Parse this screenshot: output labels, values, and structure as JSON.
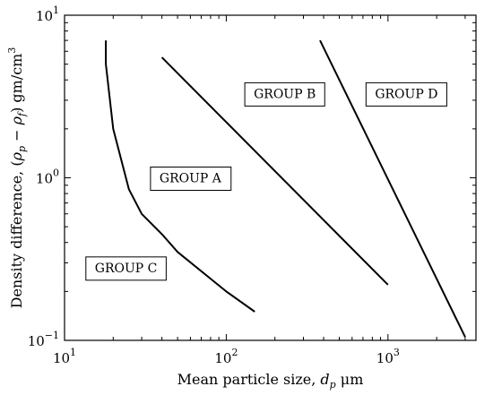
{
  "chart_data": {
    "type": "line",
    "xscale": "log",
    "yscale": "log",
    "xlim": [
      10,
      3500
    ],
    "ylim": [
      0.1,
      10
    ],
    "xlabel": "Mean particle size, d_p μm",
    "xlabel_parts": {
      "pre": "Mean particle size, ",
      "var": "d",
      "sub": "p",
      "unit": " μm"
    },
    "ylabel": "Density difference, (ρ_p − ρ_f) gm/cm³",
    "ylabel_parts": {
      "pre": "Density difference, (",
      "rho1": "ρ",
      "sub1": "p",
      "mid": " − ",
      "rho2": "ρ",
      "sub2": "f",
      "post": ") gm/cm",
      "sup": "3"
    },
    "x_ticks": [
      {
        "value": 10,
        "base": "10",
        "exp": "1"
      },
      {
        "value": 100,
        "base": "10",
        "exp": "2"
      },
      {
        "value": 1000,
        "base": "10",
        "exp": "3"
      }
    ],
    "y_ticks": [
      {
        "value": 0.1,
        "base": "10",
        "exp": "−1"
      },
      {
        "value": 1,
        "base": "10",
        "exp": "0"
      },
      {
        "value": 10,
        "base": "10",
        "exp": "1"
      }
    ],
    "series": [
      {
        "points": [
          [
            18,
            7
          ],
          [
            18,
            5
          ],
          [
            20,
            2
          ],
          [
            25,
            0.85
          ],
          [
            30,
            0.6
          ],
          [
            40,
            0.45
          ],
          [
            50,
            0.35
          ],
          [
            100,
            0.2
          ],
          [
            150,
            0.15
          ]
        ]
      },
      {
        "points": [
          [
            40,
            5.5
          ],
          [
            1000,
            0.22
          ]
        ]
      },
      {
        "points": [
          [
            380,
            7
          ],
          [
            3000,
            0.105
          ]
        ]
      }
    ],
    "annotations": [
      {
        "text": "GROUP A",
        "x": 60,
        "y": 1.0
      },
      {
        "text": "GROUP B",
        "x": 230,
        "y": 3.3
      },
      {
        "text": "GROUP C",
        "x": 24,
        "y": 0.28
      },
      {
        "text": "GROUP D",
        "x": 1300,
        "y": 3.3
      }
    ]
  }
}
